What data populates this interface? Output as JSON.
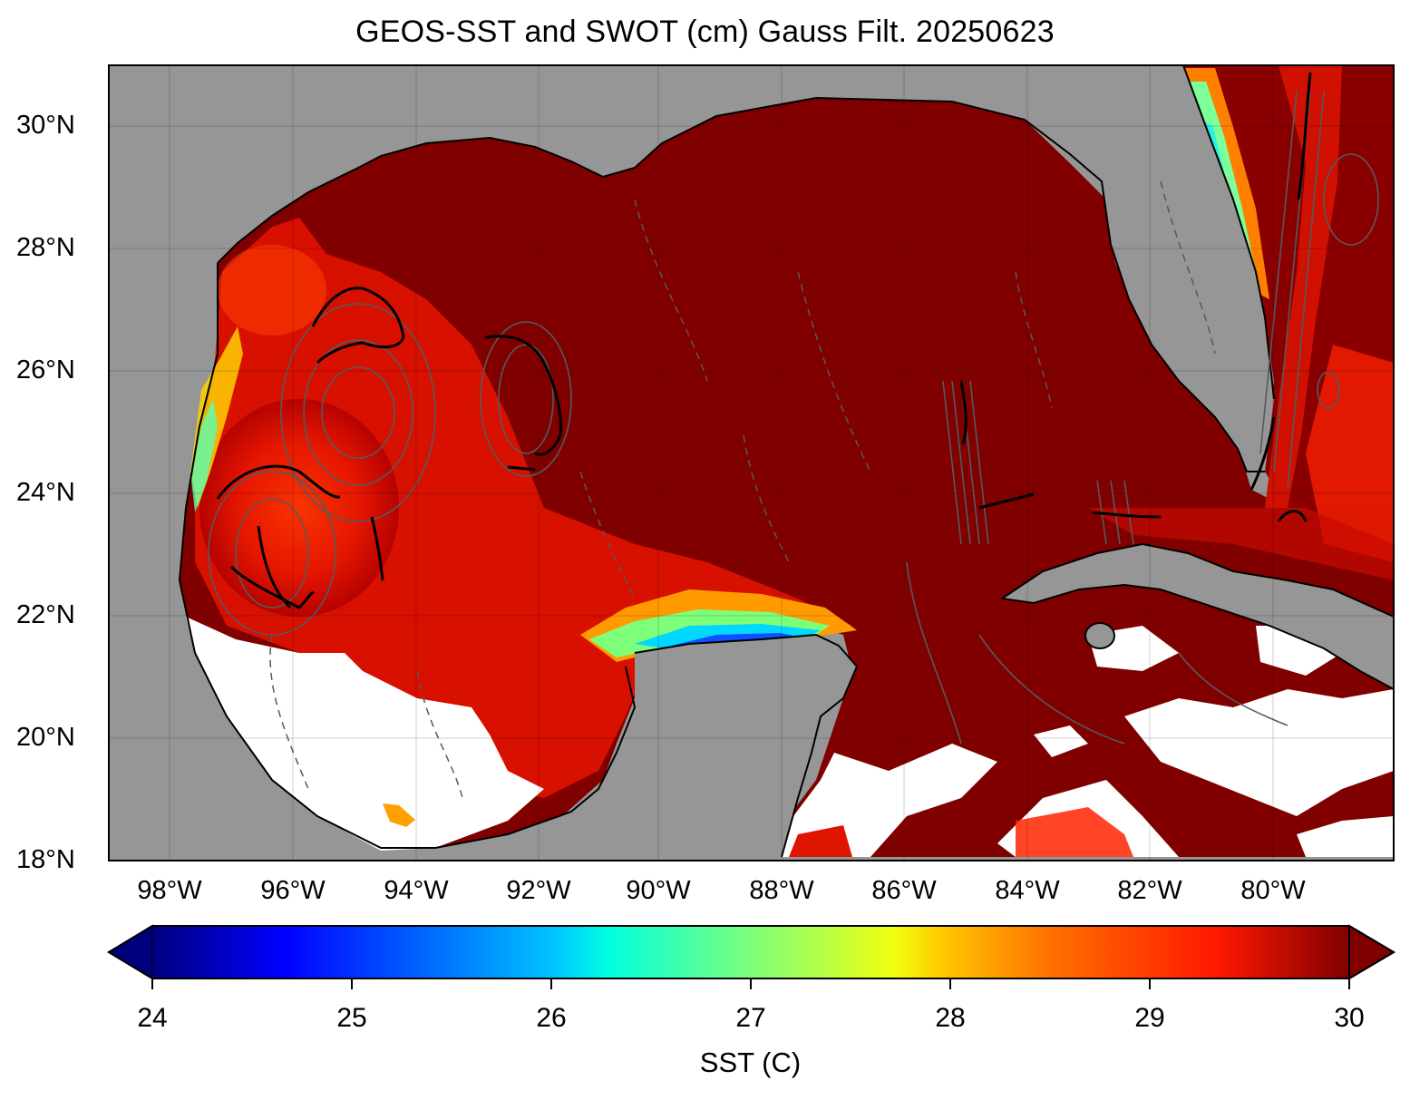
{
  "title": "GEOS-SST  and SWOT (cm) Gauss Filt. 20250623",
  "map": {
    "lon_range": [
      -99,
      -78.3
    ],
    "lat_range": [
      18,
      31
    ],
    "lat_ticks": [
      "18°N",
      "20°N",
      "22°N",
      "24°N",
      "26°N",
      "28°N",
      "30°N"
    ],
    "lon_ticks": [
      "98°W",
      "96°W",
      "94°W",
      "92°W",
      "90°W",
      "88°W",
      "86°W",
      "84°W",
      "82°W",
      "80°W"
    ],
    "land_color": "#969696",
    "missing_color": "#ffffff",
    "warm_color": "#800000",
    "contour_color": "#555a60"
  },
  "colorbar": {
    "label": "SST (C)",
    "min": 24,
    "max": 30,
    "ticks": [
      "24",
      "25",
      "26",
      "27",
      "28",
      "29",
      "30"
    ],
    "colormap": "jet",
    "extend": "both"
  }
}
